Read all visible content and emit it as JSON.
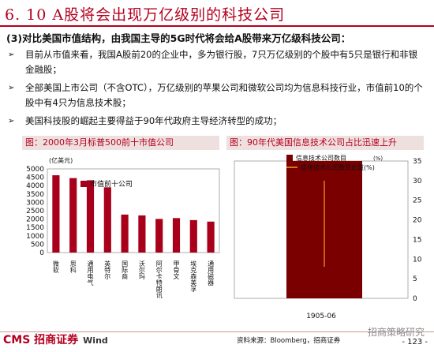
{
  "title": "6. 10 A股将会出现万亿级别的科技公司",
  "subhead": "(3)对比美国市值结构，由我国主导的5G时代将会给A股带来万亿级科技公司：",
  "bullets": [
    "目前从市值来看，我国A股前20的企业中，多为银行股，7只万亿级别的个股中有5只是银行和非银金融股；",
    "全部美国上市公司（不含OTC），万亿级别的苹果公司和微软公司均为信息科技行业，市值前10的个股中有4只为信息技术股；",
    "美国科技股的崛起主要得益于90年代政府主导经济转型的成功；"
  ],
  "chart_left": {
    "title_text": "图：2000年3月标普500前十市值公司",
    "unit": "(亿美元)",
    "type": "bar",
    "legend": "市值前十公司",
    "categories": [
      "微软",
      "思科",
      "通用电气",
      "英特尔",
      "国际商",
      "沃尔玛",
      "阿尔卡特朗讯",
      "甲骨文",
      "埃克森美孚",
      "通用磁器"
    ],
    "values": [
      4620,
      4450,
      4320,
      3900,
      2270,
      2220,
      2010,
      2060,
      1940,
      1850
    ],
    "ylim": [
      0,
      5000
    ],
    "yticks": [
      0,
      500,
      1000,
      1500,
      2000,
      2500,
      3000,
      3500,
      4000,
      4500,
      5000
    ],
    "color": "#a8001a"
  },
  "chart_right": {
    "title_text": "图：90年代美国信息技术公司占比迅速上升",
    "type": "bar",
    "legend_bar": "信息技术公司数目",
    "legend_bar_unit": "(%)",
    "legend_line": "信息技术公司数目比重(%)",
    "categories": [
      "1905-06"
    ],
    "bar_values": [
      35
    ],
    "line_values": [
      30
    ],
    "ylim": [
      0,
      35
    ],
    "yticks": [
      0,
      5,
      10,
      15,
      20,
      25,
      30,
      35
    ],
    "bar_color": "#7a0000",
    "line_color": "#f0a020"
  },
  "source": "资料来源：Bloomberg，招商证券",
  "page_number": "- 123 -",
  "watermark": "招商策略研究",
  "logo": "CMS 招商证券",
  "wind": "Wind"
}
